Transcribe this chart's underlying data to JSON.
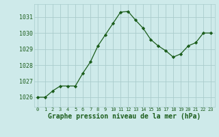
{
  "x": [
    0,
    1,
    2,
    3,
    4,
    5,
    6,
    7,
    8,
    9,
    10,
    11,
    12,
    13,
    14,
    15,
    16,
    17,
    18,
    19,
    20,
    21,
    22,
    23
  ],
  "y": [
    1026.0,
    1026.0,
    1026.4,
    1026.7,
    1026.7,
    1026.7,
    1027.5,
    1028.2,
    1029.2,
    1029.9,
    1030.6,
    1031.3,
    1031.35,
    1030.8,
    1030.3,
    1029.6,
    1029.2,
    1028.9,
    1028.5,
    1028.7,
    1029.2,
    1029.4,
    1030.0,
    1030.0
  ],
  "line_color": "#1a5c1a",
  "marker": "D",
  "marker_size": 2.2,
  "bg_color": "#ceeaea",
  "grid_color": "#aacccc",
  "xlabel": "Graphe pression niveau de la mer (hPa)",
  "xlabel_fontsize": 7.0,
  "ylabel_ticks": [
    1026,
    1027,
    1028,
    1029,
    1030,
    1031
  ],
  "xtick_labels": [
    "0",
    "1",
    "2",
    "3",
    "4",
    "5",
    "6",
    "7",
    "8",
    "9",
    "10",
    "11",
    "12",
    "13",
    "14",
    "15",
    "16",
    "17",
    "18",
    "19",
    "20",
    "21",
    "22",
    "23"
  ],
  "ylim": [
    1025.4,
    1031.8
  ],
  "xlim": [
    -0.5,
    23.5
  ],
  "tick_color": "#1a5c1a",
  "ax_bg": "#ceeaea",
  "ytick_fontsize": 6.0,
  "xtick_fontsize": 5.0
}
